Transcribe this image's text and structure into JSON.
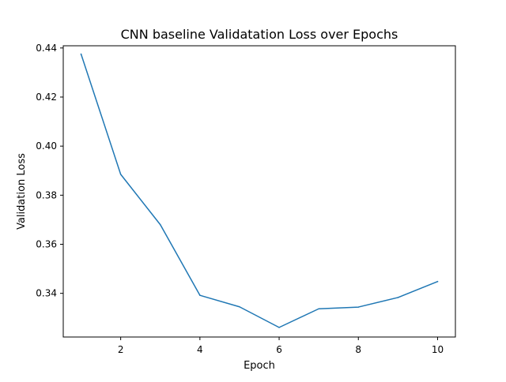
{
  "chart_data": {
    "type": "line",
    "title": "CNN baseline Validatation Loss over Epochs",
    "xlabel": "Epoch",
    "ylabel": "Validation Loss",
    "xlim": [
      0.55,
      10.45
    ],
    "ylim": [
      0.3222,
      0.4409
    ],
    "xticks": [
      2,
      4,
      6,
      8,
      10
    ],
    "xtick_labels": [
      "2",
      "4",
      "6",
      "8",
      "10"
    ],
    "yticks": [
      0.34,
      0.36,
      0.38,
      0.4,
      0.42,
      0.44
    ],
    "ytick_labels": [
      "0.34",
      "0.36",
      "0.38",
      "0.40",
      "0.42",
      "0.44"
    ],
    "grid": false,
    "series": [
      {
        "color": "#1f77b4",
        "x": [
          1,
          2,
          3,
          4,
          5,
          6,
          7,
          8,
          9,
          10
        ],
        "y": [
          0.4375,
          0.3885,
          0.368,
          0.3392,
          0.3345,
          0.3261,
          0.3337,
          0.3344,
          0.3383,
          0.3448
        ]
      }
    ]
  }
}
